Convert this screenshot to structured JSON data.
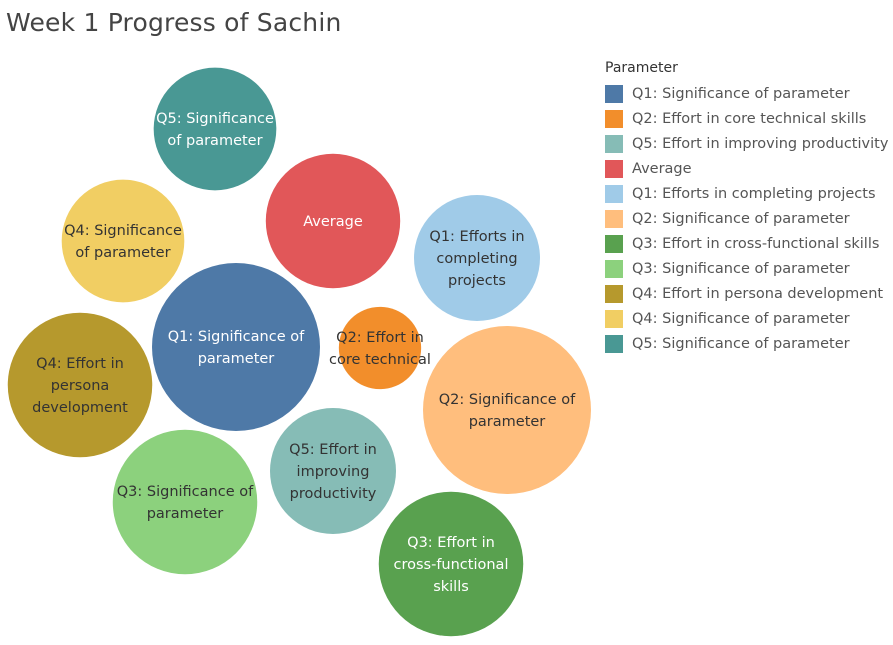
{
  "chart_data": {
    "type": "packed-bubble",
    "title": "Week 1 Progress of Sachin",
    "legend_title": "Parameter",
    "legend_position": "right",
    "series": [
      {
        "name": "Q1: Significance of parameter",
        "label": [
          "Q1: Significance of",
          "parameter"
        ],
        "color": "#4e79a7",
        "text_color": "#ffffff",
        "relative_size": 1.0
      },
      {
        "name": "Q2: Effort in core technical skills",
        "label": [
          "Q2: Effort in",
          "core technical"
        ],
        "color": "#f28e2b",
        "text_color": "#333333",
        "relative_size": 0.49
      },
      {
        "name": "Q5: Effort in improving productivity",
        "label": [
          "Q5: Effort in",
          "improving",
          "productivity"
        ],
        "color": "#86bcb6",
        "text_color": "#333333",
        "relative_size": 0.75
      },
      {
        "name": "Average",
        "label": [
          "Average"
        ],
        "color": "#e15759",
        "text_color": "#ffffff",
        "relative_size": 0.8
      },
      {
        "name": "Q1: Efforts in completing projects",
        "label": [
          "Q1: Efforts in",
          "completing",
          "projects"
        ],
        "color": "#a0cbe8",
        "text_color": "#333333",
        "relative_size": 0.75
      },
      {
        "name": "Q2: Significance of parameter",
        "label": [
          "Q2: Significance of",
          "parameter"
        ],
        "color": "#ffbe7d",
        "text_color": "#333333",
        "relative_size": 1.0
      },
      {
        "name": "Q3: Effort in cross-functional skills",
        "label": [
          "Q3: Effort in",
          "cross-functional",
          "skills"
        ],
        "color": "#59a14f",
        "text_color": "#ffffff",
        "relative_size": 0.86
      },
      {
        "name": "Q3: Significance of parameter",
        "label": [
          "Q3: Significance of",
          "parameter"
        ],
        "color": "#8cd17d",
        "text_color": "#333333",
        "relative_size": 0.86
      },
      {
        "name": "Q4: Effort in persona development",
        "label": [
          "Q4: Effort in",
          "persona",
          "development"
        ],
        "color": "#b6992d",
        "text_color": "#333333",
        "relative_size": 0.86
      },
      {
        "name": "Q4: Significance of parameter",
        "label": [
          "Q4: Significance",
          "of parameter"
        ],
        "color": "#f1ce63",
        "text_color": "#333333",
        "relative_size": 0.73
      },
      {
        "name": "Q5: Significance of parameter",
        "label": [
          "Q5: Significance",
          "of parameter"
        ],
        "color": "#499894",
        "text_color": "#ffffff",
        "relative_size": 0.73
      }
    ]
  }
}
